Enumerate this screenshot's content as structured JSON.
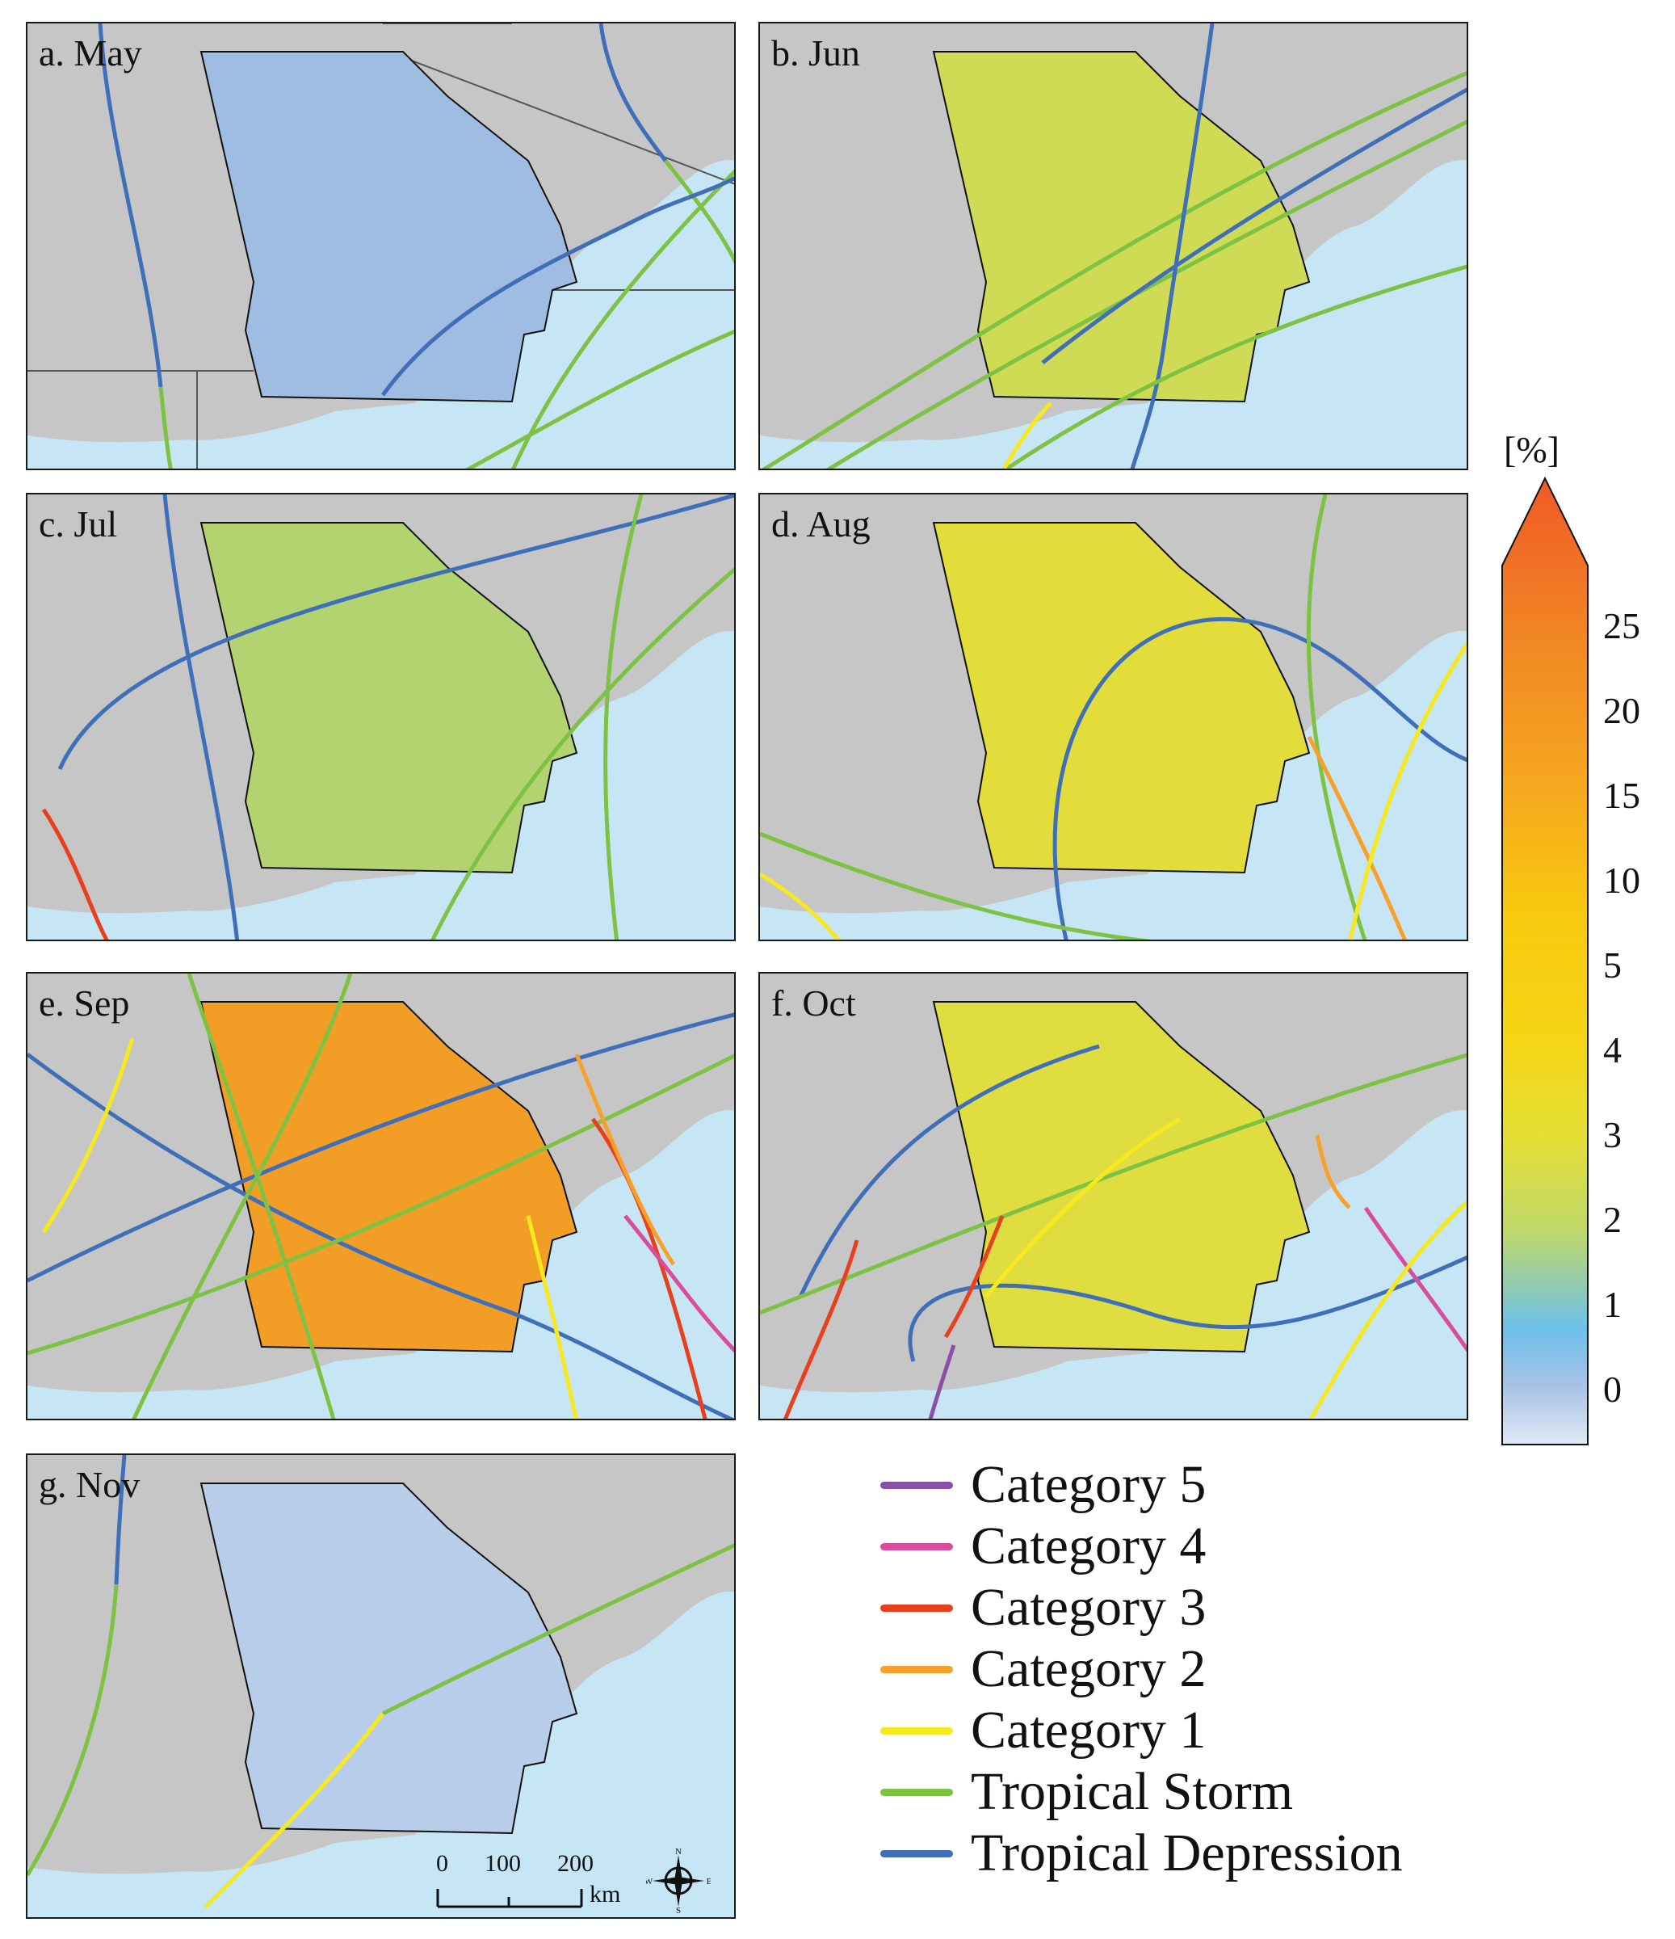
{
  "panels": [
    {
      "id": "may",
      "label": "a. May",
      "choropleth_level": "0-1"
    },
    {
      "id": "jun",
      "label": "b. Jun",
      "choropleth_level": "1-3"
    },
    {
      "id": "jul",
      "label": "c. Jul",
      "choropleth_level": "1-3"
    },
    {
      "id": "aug",
      "label": "d. Aug",
      "choropleth_level": "3-4"
    },
    {
      "id": "sep",
      "label": "e. Sep",
      "choropleth_level": "5-20"
    },
    {
      "id": "oct",
      "label": "f. Oct",
      "choropleth_level": "3-4"
    },
    {
      "id": "nov",
      "label": "g. Nov",
      "choropleth_level": "0-1"
    }
  ],
  "colorbar": {
    "unit": "[%]",
    "ticks": [
      "25",
      "20",
      "15",
      "10",
      "5",
      "4",
      "3",
      "2",
      "1",
      "0"
    ],
    "colors": [
      "#dfe9f4",
      "#a8c2e6",
      "#6cc0ea",
      "#bfd86b",
      "#e5df35",
      "#f5d515",
      "#f8c90e",
      "#f6a81f",
      "#f28a25",
      "#ef5a26"
    ]
  },
  "legend": [
    {
      "label": "Category 5",
      "color": "#8a4fa6"
    },
    {
      "label": "Category 4",
      "color": "#d94c9e"
    },
    {
      "label": "Category 3",
      "color": "#e8401f"
    },
    {
      "label": "Category 2",
      "color": "#f7a12b"
    },
    {
      "label": "Category 1",
      "color": "#f7e91d"
    },
    {
      "label": "Tropical Storm",
      "color": "#7ec243"
    },
    {
      "label": "Tropical Depression",
      "color": "#3f6fb9"
    }
  ],
  "scalebar": {
    "labels": [
      "0",
      "100",
      "200"
    ],
    "unit": "km"
  },
  "north_arrow": {
    "n": "N",
    "s": "S",
    "e": "E",
    "w": "W"
  },
  "colors": {
    "land": "#c6c6c6",
    "water": "#c6e6f6",
    "border": "#555555"
  }
}
